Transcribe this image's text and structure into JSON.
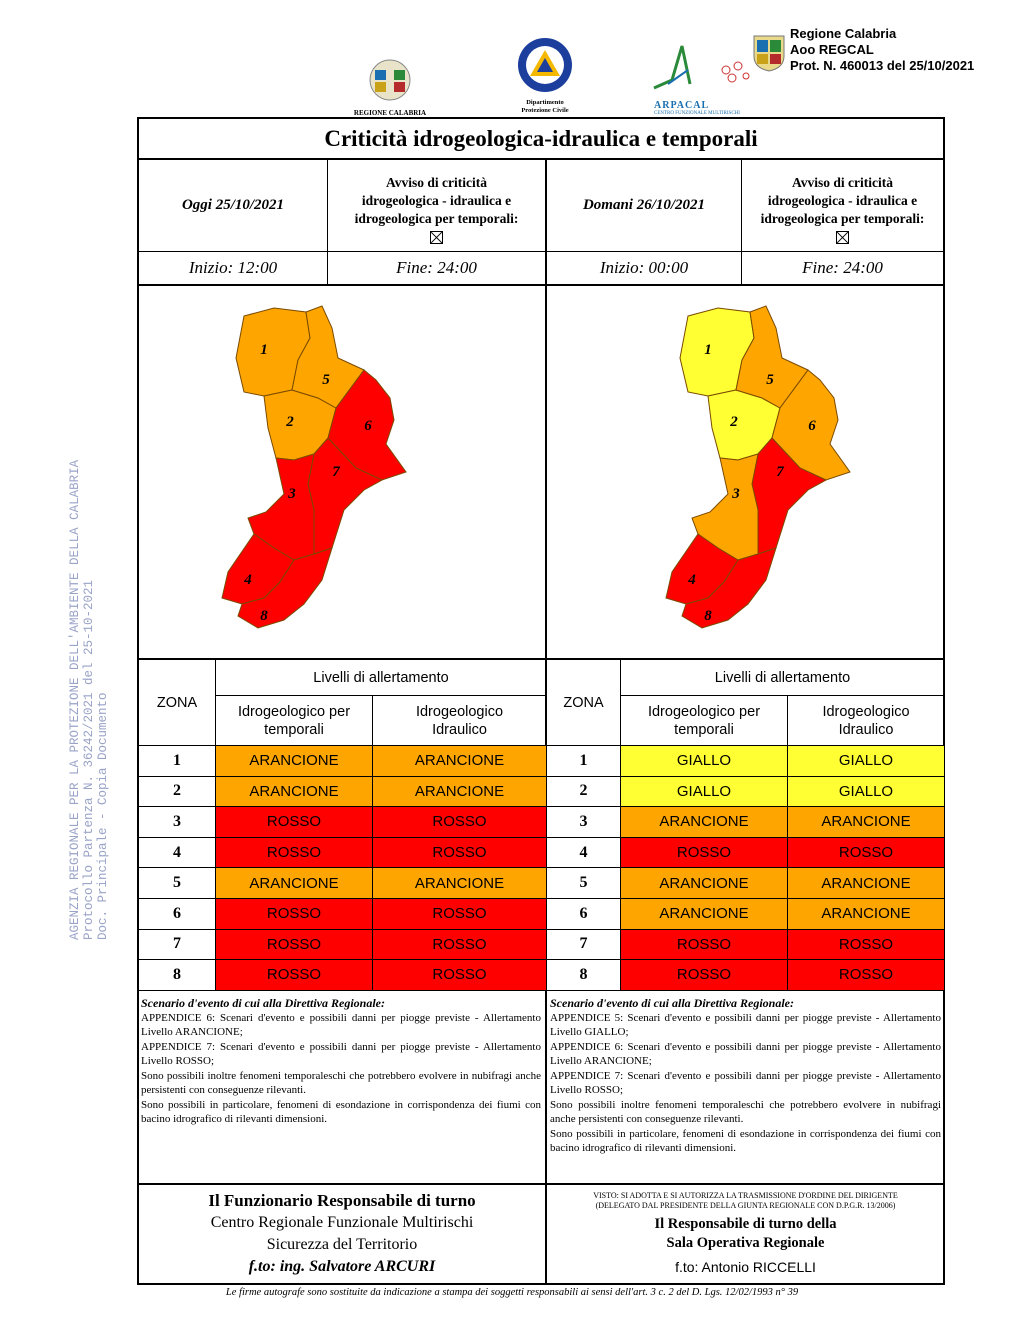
{
  "header": {
    "logo_calabria_caption": "REGIONE CALABRIA",
    "logo_protezione_caption_1": "Dipartimento",
    "logo_protezione_caption_2": "Protezione Civile",
    "logo_arpacal_name": "ARPACAL",
    "logo_arpacal_caption": "CENTRO FUNZIONALE MULTIRISCHI",
    "protocol_stamp": {
      "line1": "Regione Calabria",
      "line2": "Aoo REGCAL",
      "line3": "Prot. N. 460013 del 25/10/2021"
    }
  },
  "watermark": {
    "line1": "AGENZIA REGIONALE PER LA PROTEZIONE DELL'AMBIENTE DELLA CALABRIA",
    "line2": "Protocollo Partenza N. 36242/2021 del 25-10-2021",
    "line3": "Doc. Principale - Copia Documento"
  },
  "title": "Criticità idrogeologica-idraulica e temporali",
  "today": {
    "date_label": "Oggi 25/10/2021",
    "avviso_l1": "Avviso di criticità",
    "avviso_l2": "idrogeologica - idraulica e",
    "avviso_l3": "idrogeologica per temporali:",
    "start": "Inizio: 12:00",
    "end": "Fine: 24:00"
  },
  "tomorrow": {
    "date_label": "Domani 26/10/2021",
    "avviso_l1": "Avviso di criticità",
    "avviso_l2": "idrogeologica - idraulica e",
    "avviso_l3": "idrogeologica per temporali:",
    "start": "Inizio: 00:00",
    "end": "Fine: 24:00"
  },
  "colors": {
    "arancione": "#FFA500",
    "rosso": "#FF0000",
    "giallo": "#FFFF33"
  },
  "map_zone_labels": [
    "1",
    "2",
    "3",
    "4",
    "5",
    "6",
    "7",
    "8"
  ],
  "table": {
    "zona_header": "ZONA",
    "levels_header": "Livelli di allertamento",
    "col1_l1": "Idrogeologico per",
    "col1_l2": "temporali",
    "col2_l1": "Idrogeologico",
    "col2_l2": "Idraulico"
  },
  "today_levels": [
    {
      "zone": "1",
      "a": "ARANCIONE",
      "b": "ARANCIONE"
    },
    {
      "zone": "2",
      "a": "ARANCIONE",
      "b": "ARANCIONE"
    },
    {
      "zone": "3",
      "a": "ROSSO",
      "b": "ROSSO"
    },
    {
      "zone": "4",
      "a": "ROSSO",
      "b": "ROSSO"
    },
    {
      "zone": "5",
      "a": "ARANCIONE",
      "b": "ARANCIONE"
    },
    {
      "zone": "6",
      "a": "ROSSO",
      "b": "ROSSO"
    },
    {
      "zone": "7",
      "a": "ROSSO",
      "b": "ROSSO"
    },
    {
      "zone": "8",
      "a": "ROSSO",
      "b": "ROSSO"
    }
  ],
  "tomorrow_levels": [
    {
      "zone": "1",
      "a": "GIALLO",
      "b": "GIALLO"
    },
    {
      "zone": "2",
      "a": "GIALLO",
      "b": "GIALLO"
    },
    {
      "zone": "3",
      "a": "ARANCIONE",
      "b": "ARANCIONE"
    },
    {
      "zone": "4",
      "a": "ROSSO",
      "b": "ROSSO"
    },
    {
      "zone": "5",
      "a": "ARANCIONE",
      "b": "ARANCIONE"
    },
    {
      "zone": "6",
      "a": "ARANCIONE",
      "b": "ARANCIONE"
    },
    {
      "zone": "7",
      "a": "ROSSO",
      "b": "ROSSO"
    },
    {
      "zone": "8",
      "a": "ROSSO",
      "b": "ROSSO"
    }
  ],
  "scenario_today": {
    "title": "Scenario d'evento di cui alla Direttiva Regionale:",
    "lines": [
      "APPENDICE 6: Scenari d'evento e possibili danni per piogge previste - Allertamento Livello ARANCIONE;",
      "APPENDICE 7: Scenari d'evento e possibili danni per piogge previste - Allertamento Livello ROSSO;",
      "Sono possibili inoltre fenomeni temporaleschi che potrebbero evolvere in nubifragi anche persistenti con conseguenze rilevanti.",
      "Sono possibili in particolare, fenomeni di esondazione in corrispondenza dei fiumi con bacino idrografico di rilevanti dimensioni."
    ]
  },
  "scenario_tomorrow": {
    "title": "Scenario d'evento di cui alla Direttiva Regionale:",
    "lines": [
      "APPENDICE 5: Scenari d'evento e possibili danni per piogge previste - Allertamento Livello GIALLO;",
      "APPENDICE 6: Scenari d'evento e possibili danni per piogge previste - Allertamento Livello ARANCIONE;",
      "APPENDICE 7: Scenari d'evento e possibili danni per piogge previste - Allertamento Livello ROSSO;",
      "Sono possibili inoltre fenomeni temporaleschi che potrebbero evolvere in nubifragi anche persistenti con conseguenze rilevanti.",
      "Sono possibili in particolare, fenomeni di esondazione in corrispondenza dei fiumi con bacino idrografico di rilevanti dimensioni."
    ]
  },
  "signature_left": {
    "l1": "Il Funzionario Responsabile di turno",
    "l2": "Centro Regionale Funzionale Multirischi",
    "l3": "Sicurezza del Territorio",
    "l4": "f.to: ing. Salvatore ARCURI"
  },
  "signature_right": {
    "visto_l1": "VISTO: SI ADOTTA E SI AUTORIZZA LA TRASMISSIONE D'ORDINE DEL DIRIGENTE",
    "visto_l2": "(DELEGATO DAL PRESIDENTE DELLA GIUNTA REGIONALE CON D.P.G.R. 13/2006)",
    "l1": "Il Responsabile di turno della",
    "l2": "Sala Operativa Regionale",
    "l3": "f.to: Antonio RICCELLI"
  },
  "footer": "Le firme autografe sono sostituite da indicazione a stampa dei soggetti responsabili ai sensi dell'art. 3 c. 2 del D. Lgs. 12/02/1993 n° 39"
}
